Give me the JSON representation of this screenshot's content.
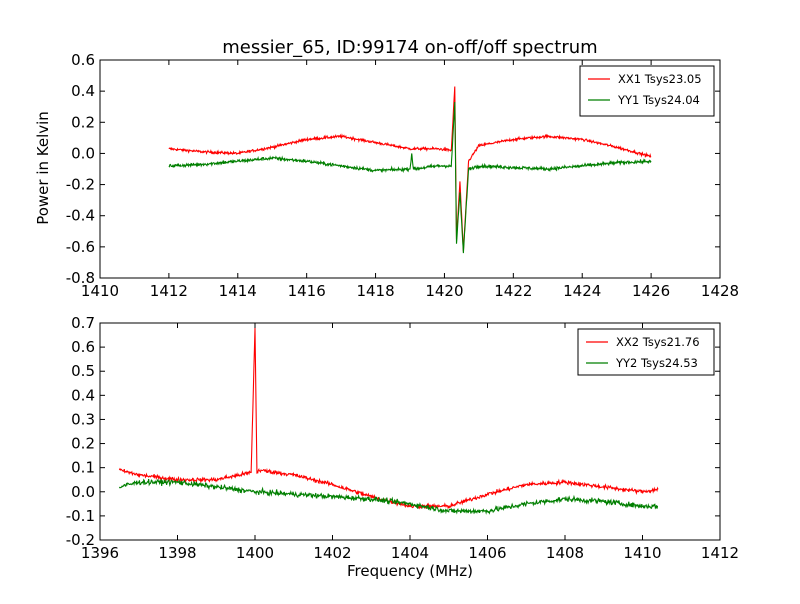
{
  "figure": {
    "title": "messier_65, ID:99174 on-off/off spectrum",
    "ylabel": "Power in Kelvin",
    "xlabel": "Frequency (MHz)"
  },
  "chart_data": [
    {
      "type": "line",
      "title": "messier_65, ID:99174 on-off/off spectrum",
      "xlabel": "",
      "ylabel": "Power in Kelvin",
      "xlim": [
        1410,
        1428
      ],
      "ylim": [
        -0.8,
        0.6
      ],
      "xticks": [
        1410,
        1412,
        1414,
        1416,
        1418,
        1420,
        1422,
        1424,
        1426,
        1428
      ],
      "yticks": [
        -0.8,
        -0.6,
        -0.4,
        -0.2,
        0.0,
        0.2,
        0.4,
        0.6
      ],
      "grid": false,
      "legend_position": "top-right",
      "series": [
        {
          "name": "XX1 Tsys23.05",
          "color": "#ff0000",
          "x": [
            1412.0,
            1413.0,
            1414.0,
            1415.0,
            1416.0,
            1417.0,
            1418.0,
            1419.0,
            1419.8,
            1420.2,
            1420.3,
            1420.35,
            1420.45,
            1420.55,
            1420.7,
            1421.0,
            1422.0,
            1423.0,
            1424.0,
            1425.0,
            1426.0
          ],
          "y": [
            0.03,
            0.01,
            0.0,
            0.04,
            0.09,
            0.11,
            0.07,
            0.03,
            0.03,
            0.02,
            0.43,
            -0.55,
            -0.18,
            -0.63,
            -0.05,
            0.05,
            0.09,
            0.11,
            0.09,
            0.04,
            -0.02
          ]
        },
        {
          "name": "YY1 Tsys24.04",
          "color": "#007f00",
          "x": [
            1412.0,
            1413.0,
            1414.0,
            1415.0,
            1416.0,
            1417.0,
            1418.0,
            1419.0,
            1419.05,
            1419.1,
            1419.8,
            1420.2,
            1420.3,
            1420.35,
            1420.45,
            1420.55,
            1420.7,
            1421.0,
            1422.0,
            1423.0,
            1424.0,
            1425.0,
            1426.0
          ],
          "y": [
            -0.08,
            -0.07,
            -0.05,
            -0.03,
            -0.05,
            -0.08,
            -0.11,
            -0.1,
            0.0,
            -0.1,
            -0.08,
            -0.08,
            0.33,
            -0.58,
            -0.25,
            -0.64,
            -0.1,
            -0.08,
            -0.09,
            -0.1,
            -0.08,
            -0.06,
            -0.05
          ]
        }
      ]
    },
    {
      "type": "line",
      "title": "",
      "xlabel": "Frequency (MHz)",
      "ylabel": "",
      "xlim": [
        1396,
        1412
      ],
      "ylim": [
        -0.2,
        0.7
      ],
      "xticks": [
        1396,
        1398,
        1400,
        1402,
        1404,
        1406,
        1408,
        1410,
        1412
      ],
      "yticks": [
        -0.2,
        -0.1,
        0.0,
        0.1,
        0.2,
        0.3,
        0.4,
        0.5,
        0.6,
        0.7
      ],
      "grid": false,
      "legend_position": "top-right",
      "series": [
        {
          "name": "XX2 Tsys21.76",
          "color": "#ff0000",
          "x": [
            1396.5,
            1397.0,
            1398.0,
            1399.0,
            1399.9,
            1400.0,
            1400.05,
            1400.1,
            1401.0,
            1402.0,
            1403.0,
            1404.0,
            1405.0,
            1406.0,
            1407.0,
            1408.0,
            1409.0,
            1410.0,
            1410.4
          ],
          "y": [
            0.09,
            0.07,
            0.05,
            0.05,
            0.08,
            0.68,
            0.08,
            0.09,
            0.07,
            0.03,
            -0.02,
            -0.06,
            -0.06,
            -0.01,
            0.03,
            0.04,
            0.02,
            0.0,
            0.01
          ]
        },
        {
          "name": "YY2 Tsys24.53",
          "color": "#007f00",
          "x": [
            1396.5,
            1397.0,
            1398.0,
            1399.0,
            1400.0,
            1401.0,
            1402.0,
            1403.0,
            1404.0,
            1405.0,
            1406.0,
            1407.0,
            1408.0,
            1409.0,
            1410.0,
            1410.4
          ],
          "y": [
            0.02,
            0.04,
            0.04,
            0.02,
            0.0,
            -0.01,
            -0.02,
            -0.03,
            -0.05,
            -0.08,
            -0.08,
            -0.05,
            -0.03,
            -0.04,
            -0.06,
            -0.06
          ]
        }
      ]
    }
  ]
}
